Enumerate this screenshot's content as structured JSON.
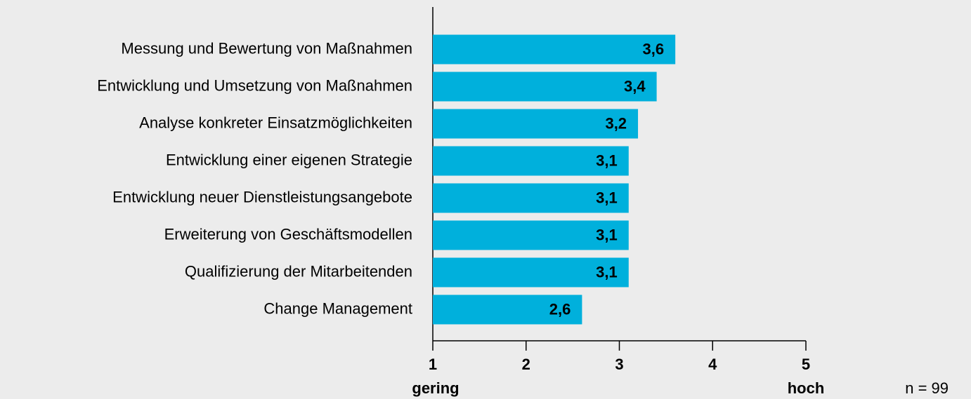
{
  "chart_data": {
    "type": "bar",
    "orientation": "horizontal",
    "categories": [
      "Messung und Bewertung von Maßnahmen",
      "Entwicklung und Umsetzung von Maßnahmen",
      "Analyse konkreter Einsatzmöglichkeiten",
      "Entwicklung einer eigenen Strategie",
      "Entwicklung neuer Dienstleistungsangebote",
      "Erweiterung von Geschäftsmodellen",
      "Qualifizierung der Mitarbeitenden",
      "Change Management"
    ],
    "values": [
      3.6,
      3.4,
      3.2,
      3.1,
      3.1,
      3.1,
      3.1,
      2.6
    ],
    "value_labels": [
      "3,6",
      "3,4",
      "3,2",
      "3,1",
      "3,1",
      "3,1",
      "3,1",
      "2,6"
    ],
    "color": "#00b0dc",
    "xlim": [
      1,
      5
    ],
    "xticks": [
      1,
      2,
      3,
      4,
      5
    ],
    "scale_low_label": "gering",
    "scale_high_label": "hoch",
    "note": "n = 99"
  }
}
